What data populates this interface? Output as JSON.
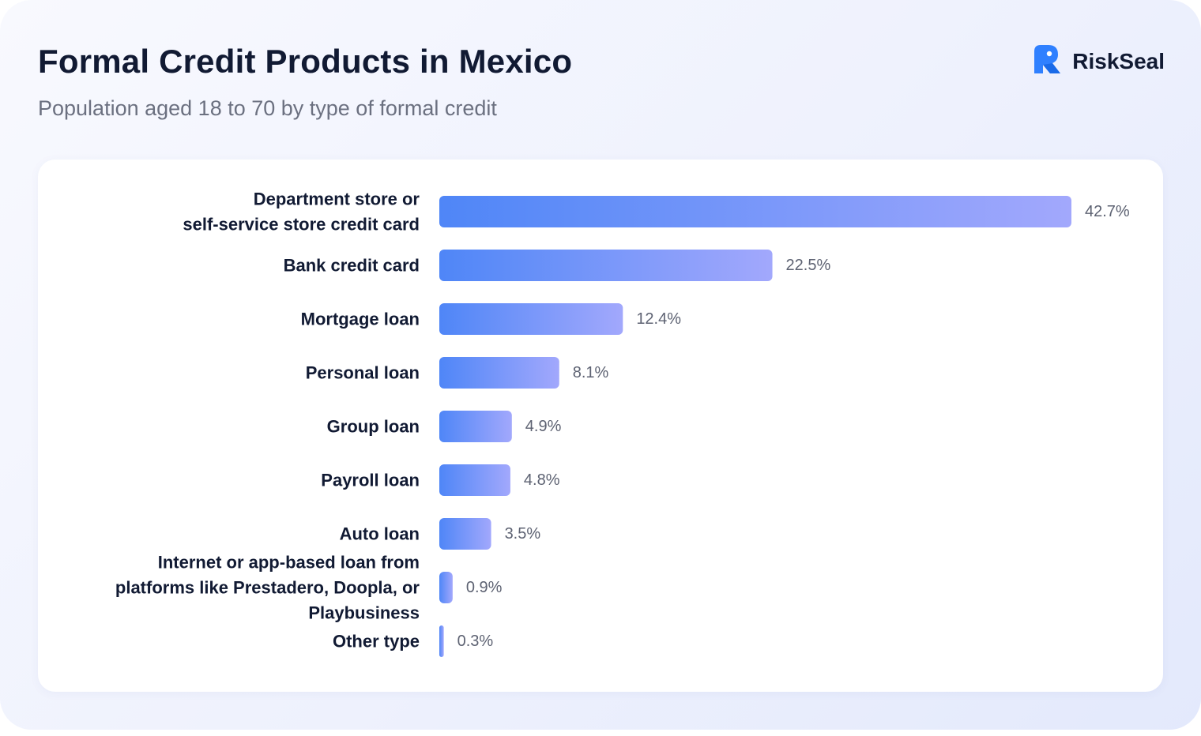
{
  "header": {
    "title": "Formal Credit Products in Mexico",
    "subtitle": "Population aged 18 to 70 by type of formal credit",
    "brand": "RiskSeal",
    "brand_icon": "riskseal-logo-icon"
  },
  "colors": {
    "bar_start": "#4f86f7",
    "bar_end": "#a2a8fc",
    "logo": "#2f80ff",
    "text": "#111a33",
    "value_text": "#5d6272"
  },
  "chart_data": {
    "type": "bar",
    "orientation": "horizontal",
    "title": "Formal Credit Products in Mexico",
    "subtitle": "Population aged 18 to 70 by type of formal credit",
    "unit": "%",
    "xlim": [
      0,
      42.7
    ],
    "grid": false,
    "categories": [
      [
        "Department store or",
        "self-service store credit card"
      ],
      [
        "Bank credit card"
      ],
      [
        "Mortgage loan"
      ],
      [
        "Personal loan"
      ],
      [
        "Group loan"
      ],
      [
        "Payroll loan"
      ],
      [
        "Auto loan"
      ],
      [
        "Internet or app-based loan from",
        "platforms like Prestadero, Doopla, or",
        "Playbusiness"
      ],
      [
        "Other type"
      ]
    ],
    "values": [
      42.7,
      22.5,
      12.4,
      8.1,
      4.9,
      4.8,
      3.5,
      0.9,
      0.3
    ],
    "value_labels": [
      "42.7%",
      "22.5%",
      "12.4%",
      "8.1%",
      "4.9%",
      "4.8%",
      "3.5%",
      "0.9%",
      "0.3%"
    ]
  }
}
